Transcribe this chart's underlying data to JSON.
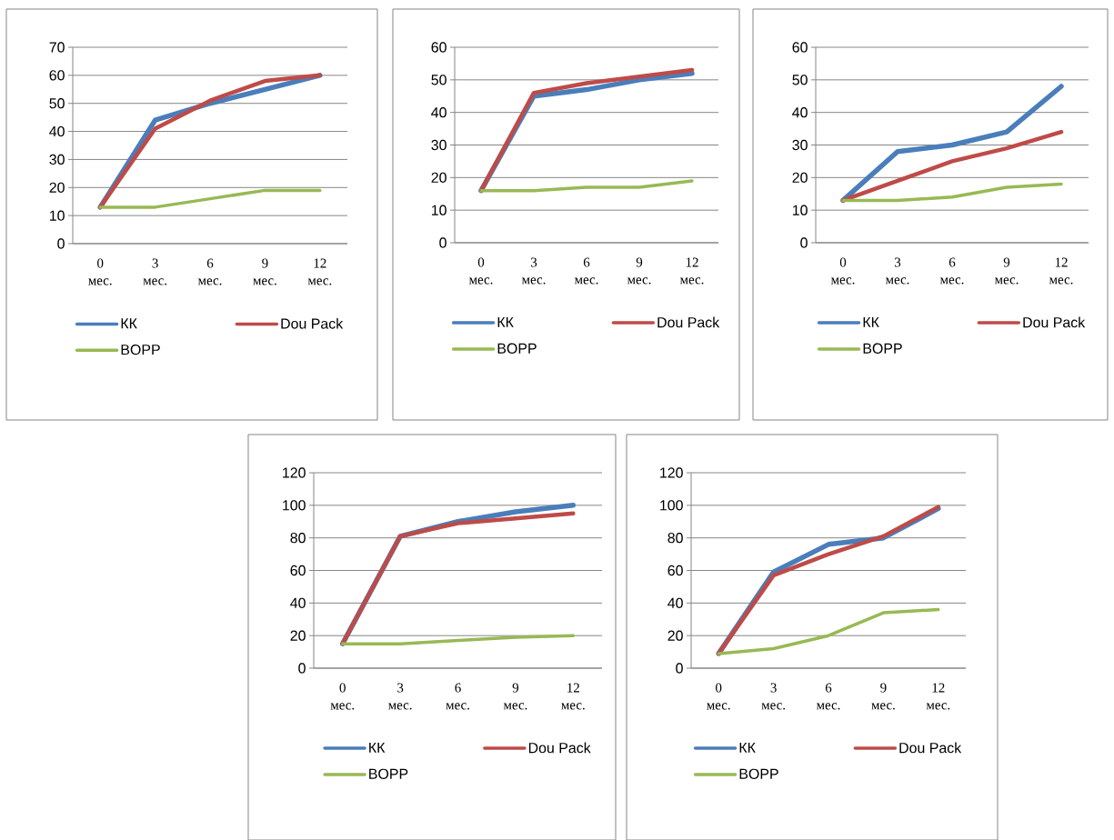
{
  "chart_data": [
    {
      "type": "line",
      "categories": [
        "0 мес.",
        "3 мес.",
        "6 мес.",
        "9 мес.",
        "12 мес."
      ],
      "ylim": [
        0,
        70
      ],
      "yticks": [
        0,
        10,
        20,
        30,
        40,
        50,
        60,
        70
      ],
      "grid": "y",
      "legend": "bottom",
      "marker": "none",
      "line_style": "solid",
      "series": [
        {
          "name": "КК",
          "color": "#4a7ebb",
          "values": [
            13,
            44,
            50,
            55,
            60
          ]
        },
        {
          "name": "Dou Pack",
          "color": "#be4b48",
          "values": [
            13,
            41,
            51,
            58,
            60
          ]
        },
        {
          "name": "BOPP",
          "color": "#98b954",
          "values": [
            13,
            13,
            16,
            19,
            19
          ]
        }
      ]
    },
    {
      "type": "line",
      "categories": [
        "0 мес.",
        "3 мес.",
        "6 мес.",
        "9 мес.",
        "12 мес."
      ],
      "ylim": [
        0,
        60
      ],
      "yticks": [
        0,
        10,
        20,
        30,
        40,
        50,
        60
      ],
      "grid": "y",
      "legend": "bottom",
      "marker": "none",
      "line_style": "solid",
      "series": [
        {
          "name": "КК",
          "color": "#4a7ebb",
          "values": [
            16,
            45,
            47,
            50,
            52
          ]
        },
        {
          "name": "Dou Pack",
          "color": "#be4b48",
          "values": [
            16,
            46,
            49,
            51,
            53
          ]
        },
        {
          "name": "BOPP",
          "color": "#98b954",
          "values": [
            16,
            16,
            17,
            17,
            19
          ]
        }
      ]
    },
    {
      "type": "line",
      "categories": [
        "0 мес.",
        "3 мес.",
        "6 мес.",
        "9 мес.",
        "12 мес."
      ],
      "ylim": [
        0,
        60
      ],
      "yticks": [
        0,
        10,
        20,
        30,
        40,
        50,
        60
      ],
      "grid": "y",
      "legend": "bottom",
      "marker": "none",
      "line_style": "solid",
      "series": [
        {
          "name": "КК",
          "color": "#4a7ebb",
          "values": [
            13,
            28,
            30,
            34,
            48
          ]
        },
        {
          "name": "Dou Pack",
          "color": "#be4b48",
          "values": [
            13,
            19,
            25,
            29,
            34
          ]
        },
        {
          "name": "BOPP",
          "color": "#98b954",
          "values": [
            13,
            13,
            14,
            17,
            18
          ]
        }
      ]
    },
    {
      "type": "line",
      "categories": [
        "0 мес.",
        "3 мес.",
        "6 мес.",
        "9 мес.",
        "12 мес."
      ],
      "ylim": [
        0,
        120
      ],
      "yticks": [
        0,
        20,
        40,
        60,
        80,
        100,
        120
      ],
      "grid": "y",
      "legend": "bottom",
      "marker": "none",
      "line_style": "solid",
      "series": [
        {
          "name": "КК",
          "color": "#4a7ebb",
          "values": [
            15,
            81,
            90,
            96,
            100
          ]
        },
        {
          "name": "Dou Pack",
          "color": "#be4b48",
          "values": [
            15,
            81,
            89,
            92,
            95
          ]
        },
        {
          "name": "BOPP",
          "color": "#98b954",
          "values": [
            15,
            15,
            17,
            19,
            20
          ]
        }
      ]
    },
    {
      "type": "line",
      "categories": [
        "0 мес.",
        "3 мес.",
        "6 мес.",
        "9 мес.",
        "12 мес."
      ],
      "ylim": [
        0,
        120
      ],
      "yticks": [
        0,
        20,
        40,
        60,
        80,
        100,
        120
      ],
      "grid": "y",
      "legend": "bottom",
      "marker": "none",
      "line_style": "solid",
      "series": [
        {
          "name": "КК",
          "color": "#4a7ebb",
          "values": [
            9,
            59,
            76,
            80,
            98
          ]
        },
        {
          "name": "Dou Pack",
          "color": "#be4b48",
          "values": [
            9,
            57,
            70,
            81,
            99
          ]
        },
        {
          "name": "BOPP",
          "color": "#98b954",
          "values": [
            9,
            12,
            20,
            34,
            36
          ]
        }
      ]
    }
  ]
}
